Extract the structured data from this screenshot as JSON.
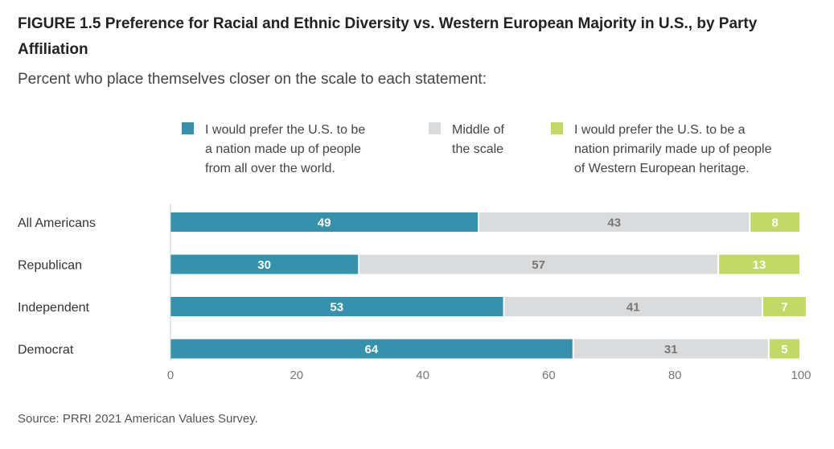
{
  "title": "FIGURE 1.5 Preference for Racial and Ethnic Diversity vs. Western European Majority in U.S., by Party Affiliation",
  "subtitle": "Percent who place themselves closer on the scale to each statement:",
  "source": "Source: PRRI 2021 American Values Survey.",
  "colors": {
    "diverse": "#3691ad",
    "middle": "#dadbdc",
    "western": "#c3d966",
    "label_on_dark": "#ffffff",
    "label_on_light": "#777777"
  },
  "chart_data": {
    "type": "bar",
    "orientation": "horizontal",
    "stacked": true,
    "categories": [
      "All Americans",
      "Republican",
      "Independent",
      "Democrat"
    ],
    "series": [
      {
        "name": "I would prefer the U.S. to be a nation made up of people from all over the world.",
        "legend_lines": [
          "I would prefer the U.S. to be",
          "a nation made up of people",
          "from all over the world."
        ],
        "values": [
          49,
          30,
          53,
          64
        ]
      },
      {
        "name": "Middle of the scale",
        "legend_lines": [
          "Middle of",
          "the scale"
        ],
        "values": [
          43,
          57,
          41,
          31
        ]
      },
      {
        "name": "I would prefer the U.S. to be a nation primarily made up of people of Western European heritage.",
        "legend_lines": [
          "I would prefer the U.S. to be a",
          "nation primarily made up of people",
          "of Western European heritage."
        ],
        "values": [
          8,
          13,
          7,
          5
        ]
      }
    ],
    "xlim": [
      0,
      100
    ],
    "xticks": [
      0,
      20,
      40,
      60,
      80,
      100
    ],
    "xlabel": "",
    "ylabel": "",
    "grid": false,
    "legend_position": "top"
  }
}
